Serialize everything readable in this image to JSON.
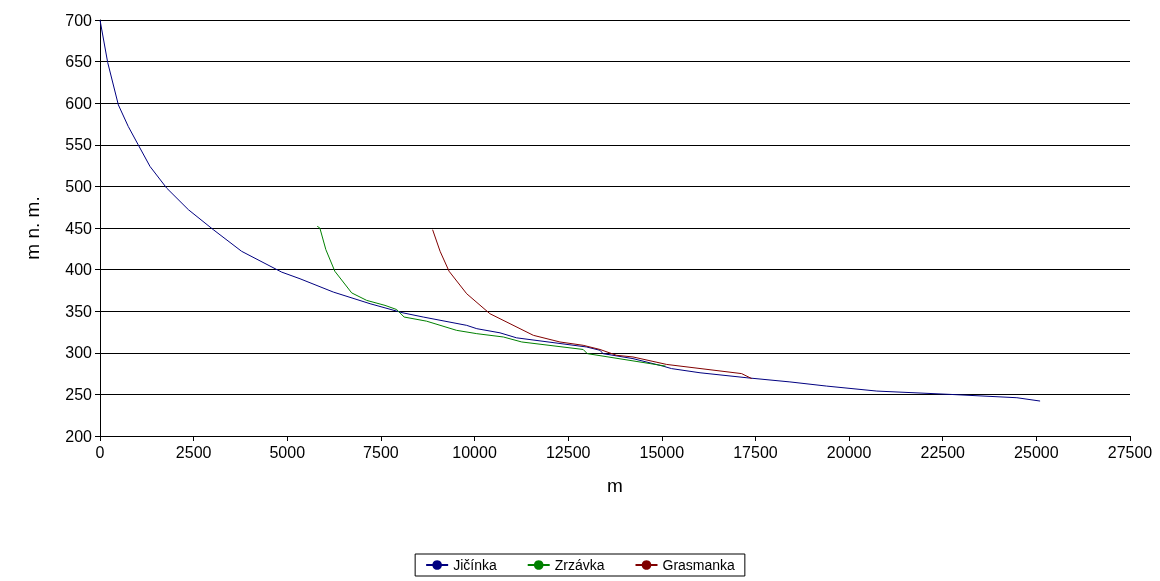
{
  "chart_data": {
    "type": "line",
    "xlabel": "m",
    "ylabel": "m n. m.",
    "xlim": [
      0,
      27500
    ],
    "xticks": [
      0,
      2500,
      5000,
      7500,
      10000,
      12500,
      15000,
      17500,
      20000,
      22500,
      25000,
      27500
    ],
    "ylim": [
      200,
      700
    ],
    "yticks": [
      200,
      250,
      300,
      350,
      400,
      450,
      500,
      550,
      600,
      650,
      700
    ],
    "grid": "y",
    "legend": "bottom",
    "marker": "none",
    "line_style": "solid",
    "series": [
      {
        "name": "Jičínka",
        "color": "#000080",
        "x": [
          0,
          205,
          490,
          755,
          1020,
          1335,
          1780,
          2360,
          3025,
          3780,
          4850,
          5340,
          6230,
          7210,
          8090,
          8630,
          9790,
          10060,
          10680,
          11120,
          12990,
          13350,
          13430,
          14230,
          15030,
          15260,
          16020,
          17270,
          18420,
          19400,
          20740,
          22700,
          24480,
          25100
        ],
        "values": [
          700,
          649,
          598,
          572,
          550,
          524,
          498,
          472,
          448,
          422,
          397,
          389,
          373,
          359,
          348,
          343,
          333,
          329,
          324,
          318,
          307,
          303,
          299,
          293,
          284,
          281,
          276,
          270,
          265,
          260,
          254,
          250,
          246,
          242
        ]
      },
      {
        "name": "Zrzávka",
        "color": "#008000",
        "x": [
          5800,
          5870,
          6030,
          6270,
          6720,
          7120,
          7610,
          7920,
          8120,
          8720,
          9520,
          10060,
          10770,
          11260,
          12900,
          13010,
          14690,
          15100
        ],
        "values": [
          452,
          450,
          424,
          398,
          372,
          363,
          357,
          352,
          343,
          338,
          327,
          323,
          319,
          313,
          304,
          299,
          287,
          284
        ]
      },
      {
        "name": "Grasmanka",
        "color": "#800000",
        "x": [
          8880,
          9080,
          9320,
          9790,
          10410,
          11570,
          12280,
          12900,
          13350,
          13790,
          14230,
          15130,
          17130,
          17400
        ],
        "values": [
          448,
          422,
          398,
          371,
          347,
          321,
          313,
          309,
          304,
          297,
          295,
          286,
          275,
          269
        ]
      }
    ]
  }
}
